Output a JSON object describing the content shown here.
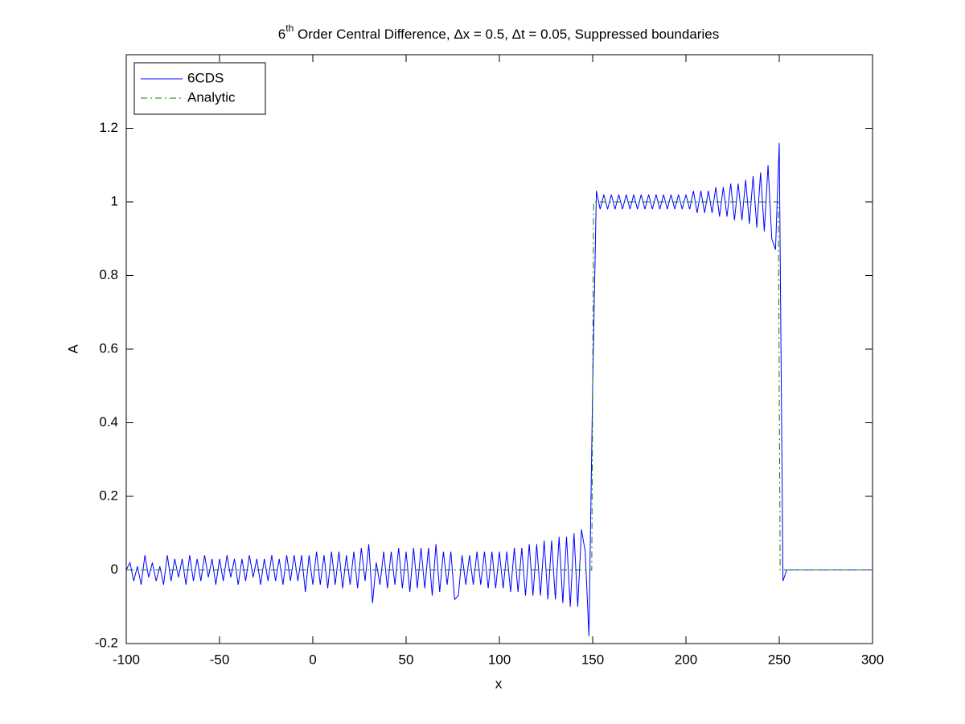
{
  "chart_data": {
    "type": "line",
    "title": {
      "base": "6",
      "superscript": "th",
      "rest": " Order Central Difference, Δx = 0.5, Δt = 0.05, Suppressed boundaries"
    },
    "xlabel": "x",
    "ylabel": "A",
    "xlim": [
      -100,
      300
    ],
    "xticks": [
      -100,
      -50,
      0,
      50,
      100,
      150,
      200,
      250,
      300
    ],
    "ylim": [
      -0.2,
      1.4
    ],
    "yticks": [
      -0.2,
      0,
      0.2,
      0.4,
      0.6,
      0.8,
      1,
      1.2
    ],
    "legend": "upper left",
    "series": [
      {
        "name": "6CDS",
        "color": "#0000ff",
        "style": "solid",
        "x": [
          -100,
          -98,
          -96,
          -94,
          -92,
          -90,
          -88,
          -86,
          -84,
          -82,
          -80,
          -78,
          -76,
          -74,
          -72,
          -70,
          -68,
          -66,
          -64,
          -62,
          -60,
          -58,
          -56,
          -54,
          -52,
          -50,
          -48,
          -46,
          -44,
          -42,
          -40,
          -38,
          -36,
          -34,
          -32,
          -30,
          -28,
          -26,
          -24,
          -22,
          -20,
          -18,
          -16,
          -14,
          -12,
          -10,
          -8,
          -6,
          -4,
          -2,
          0,
          2,
          4,
          6,
          8,
          10,
          12,
          14,
          16,
          18,
          20,
          22,
          24,
          26,
          28,
          30,
          32,
          34,
          36,
          38,
          40,
          42,
          44,
          46,
          48,
          50,
          52,
          54,
          56,
          58,
          60,
          62,
          64,
          66,
          68,
          70,
          72,
          74,
          76,
          78,
          80,
          82,
          84,
          86,
          88,
          90,
          92,
          94,
          96,
          98,
          100,
          102,
          104,
          106,
          108,
          110,
          112,
          114,
          116,
          118,
          120,
          122,
          124,
          126,
          128,
          130,
          132,
          134,
          136,
          138,
          140,
          142,
          144,
          146,
          148,
          150,
          152,
          154,
          156,
          158,
          160,
          162,
          164,
          166,
          168,
          170,
          172,
          174,
          176,
          178,
          180,
          182,
          184,
          186,
          188,
          190,
          192,
          194,
          196,
          198,
          200,
          202,
          204,
          206,
          208,
          210,
          212,
          214,
          216,
          218,
          220,
          222,
          224,
          226,
          228,
          230,
          232,
          234,
          236,
          238,
          240,
          242,
          244,
          246,
          248,
          250,
          252,
          254,
          256,
          260,
          280,
          300
        ],
        "values": [
          0,
          0.02,
          -0.03,
          0.01,
          -0.04,
          0.04,
          -0.02,
          0.02,
          -0.03,
          0.01,
          -0.04,
          0.04,
          -0.03,
          0.03,
          -0.02,
          0.03,
          -0.04,
          0.04,
          -0.03,
          0.03,
          -0.03,
          0.04,
          -0.02,
          0.03,
          -0.04,
          0.03,
          -0.03,
          0.04,
          -0.02,
          0.03,
          -0.04,
          0.03,
          -0.03,
          0.04,
          -0.02,
          0.03,
          -0.04,
          0.03,
          -0.03,
          0.04,
          -0.03,
          0.03,
          -0.04,
          0.04,
          -0.03,
          0.04,
          -0.03,
          0.04,
          -0.06,
          0.04,
          -0.04,
          0.05,
          -0.04,
          0.04,
          -0.05,
          0.05,
          -0.04,
          0.05,
          -0.05,
          0.04,
          -0.04,
          0.05,
          -0.05,
          0.06,
          -0.03,
          0.07,
          -0.09,
          0.02,
          -0.04,
          0.05,
          -0.05,
          0.05,
          -0.04,
          0.06,
          -0.05,
          0.05,
          -0.06,
          0.06,
          -0.05,
          0.06,
          -0.05,
          0.06,
          -0.07,
          0.07,
          -0.06,
          0.05,
          -0.04,
          0.05,
          -0.08,
          -0.07,
          0.04,
          -0.04,
          0.04,
          -0.04,
          0.05,
          -0.04,
          0.05,
          -0.05,
          0.05,
          -0.05,
          0.05,
          -0.05,
          0.05,
          -0.06,
          0.06,
          -0.06,
          0.06,
          -0.07,
          0.07,
          -0.07,
          0.07,
          -0.07,
          0.08,
          -0.08,
          0.08,
          -0.08,
          0.09,
          -0.09,
          0.09,
          -0.1,
          0.1,
          -0.1,
          0.11,
          0.05,
          -0.18,
          0.5,
          1.03,
          0.98,
          1.02,
          0.98,
          1.02,
          0.98,
          1.02,
          0.98,
          1.02,
          0.98,
          1.02,
          0.98,
          1.02,
          0.98,
          1.02,
          0.98,
          1.02,
          0.98,
          1.02,
          0.98,
          1.02,
          0.98,
          1.02,
          0.98,
          1.02,
          0.98,
          1.03,
          0.97,
          1.03,
          0.97,
          1.03,
          0.97,
          1.04,
          0.96,
          1.04,
          0.96,
          1.05,
          0.95,
          1.05,
          0.95,
          1.06,
          0.94,
          1.07,
          0.93,
          1.08,
          0.92,
          1.1,
          0.9,
          0.87,
          1.16,
          -0.03,
          0,
          0,
          0,
          0,
          0
        ]
      },
      {
        "name": "Analytic",
        "color": "#008000",
        "style": "dashdot",
        "x": [
          -100,
          149.5,
          150.5,
          249.5,
          250.5,
          300
        ],
        "values": [
          0,
          0,
          1,
          1,
          0,
          0
        ]
      }
    ]
  }
}
